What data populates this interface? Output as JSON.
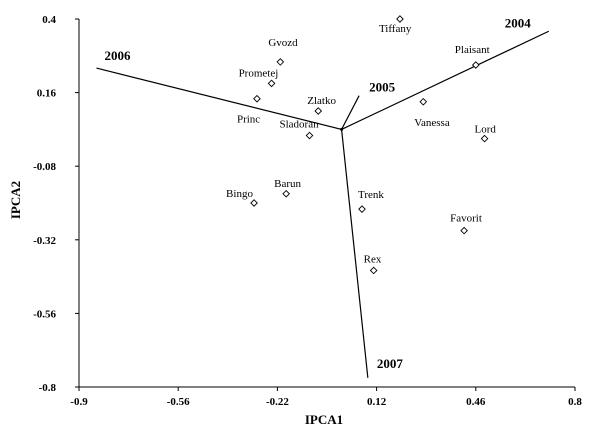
{
  "chart_data": {
    "type": "scatter",
    "xlabel": "IPCA1",
    "ylabel": "IPCA2",
    "xlim": [
      -0.9,
      0.8
    ],
    "ylim": [
      -0.8,
      0.4
    ],
    "xticks": [
      "-0.9",
      "-0.56",
      "-0.22",
      "0.12",
      "0.46",
      "0.8"
    ],
    "xtick_values": [
      -0.9,
      -0.56,
      -0.22,
      0.12,
      0.46,
      0.8
    ],
    "yticks": [
      "0.4",
      "0.16",
      "-0.08",
      "-0.32",
      "-0.56",
      "-0.8"
    ],
    "ytick_values": [
      0.4,
      0.16,
      -0.08,
      -0.32,
      -0.56,
      -0.8
    ],
    "grid": false,
    "points": [
      {
        "label": "Gvozd",
        "x": -0.21,
        "y": 0.26
      },
      {
        "label": "Prometej",
        "x": -0.24,
        "y": 0.19
      },
      {
        "label": "Princ",
        "x": -0.29,
        "y": 0.14
      },
      {
        "label": "Zlatko",
        "x": -0.08,
        "y": 0.1
      },
      {
        "label": "Sladoran",
        "x": -0.11,
        "y": 0.02
      },
      {
        "label": "Tiffany",
        "x": 0.2,
        "y": 0.4
      },
      {
        "label": "Plaisant",
        "x": 0.46,
        "y": 0.25
      },
      {
        "label": "Vanessa",
        "x": 0.28,
        "y": 0.13
      },
      {
        "label": "Lord",
        "x": 0.49,
        "y": 0.01
      },
      {
        "label": "Bingo",
        "x": -0.3,
        "y": -0.2
      },
      {
        "label": "Barun",
        "x": -0.19,
        "y": -0.17
      },
      {
        "label": "Trenk",
        "x": 0.07,
        "y": -0.22
      },
      {
        "label": "Favorit",
        "x": 0.42,
        "y": -0.29
      },
      {
        "label": "Rex",
        "x": 0.11,
        "y": -0.42
      }
    ],
    "vectors": [
      {
        "label": "2006",
        "x": -0.84,
        "y": 0.24
      },
      {
        "label": "2004",
        "x": 0.71,
        "y": 0.36
      },
      {
        "label": "2005",
        "x": 0.06,
        "y": 0.15
      },
      {
        "label": "2007",
        "x": 0.09,
        "y": -0.77
      }
    ],
    "origin": [
      0.0,
      0.04
    ]
  }
}
